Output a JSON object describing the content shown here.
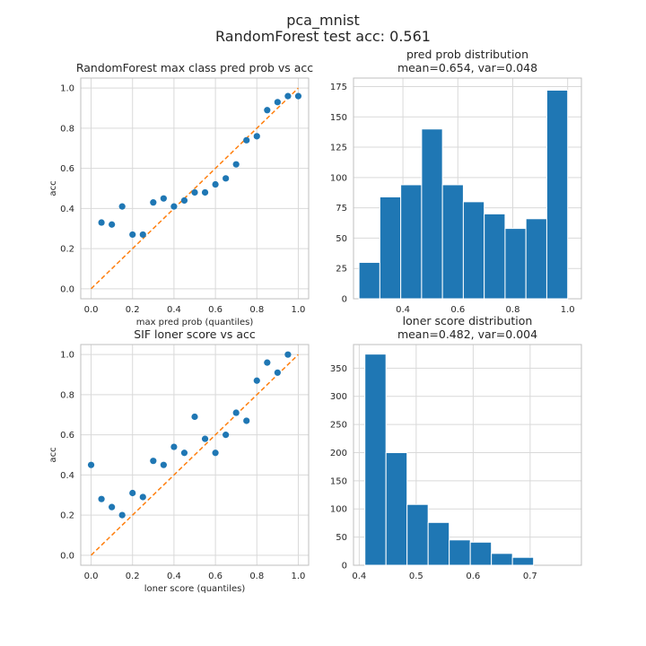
{
  "figure": {
    "title_line1": "pca_mnist",
    "title_line2": "RandomForest test acc: 0.561"
  },
  "chart_data": [
    {
      "type": "scatter",
      "title": "RandomForest max class pred prob vs acc",
      "xlabel": "max pred prob (quantiles)",
      "ylabel": "acc",
      "xlim": [
        -0.05,
        1.05
      ],
      "ylim": [
        -0.05,
        1.05
      ],
      "xticks": [
        0.0,
        0.2,
        0.4,
        0.6,
        0.8,
        1.0
      ],
      "yticks": [
        0.0,
        0.2,
        0.4,
        0.6,
        0.8,
        1.0
      ],
      "grid": true,
      "diagonal_reference": true,
      "colors": {
        "points": "#1f77b4",
        "diagonal": "#ff7f0e"
      },
      "x": [
        0.05,
        0.1,
        0.15,
        0.2,
        0.25,
        0.3,
        0.35,
        0.4,
        0.45,
        0.5,
        0.55,
        0.6,
        0.65,
        0.7,
        0.75,
        0.8,
        0.85,
        0.9,
        0.95,
        1.0
      ],
      "y": [
        0.33,
        0.32,
        0.41,
        0.27,
        0.27,
        0.43,
        0.45,
        0.41,
        0.44,
        0.48,
        0.48,
        0.52,
        0.55,
        0.62,
        0.74,
        0.76,
        0.89,
        0.93,
        0.96,
        0.96
      ]
    },
    {
      "type": "bar",
      "subtype": "histogram",
      "title_line1": "pred prob distribution",
      "title_line2": "mean=0.654, var=0.048",
      "xlim": [
        0.22,
        1.05
      ],
      "ylim": [
        0,
        182
      ],
      "xticks": [
        0.4,
        0.6,
        0.8,
        1.0
      ],
      "yticks": [
        0,
        25,
        50,
        75,
        100,
        125,
        150,
        175
      ],
      "grid": true,
      "colors": {
        "bars": "#1f77b4"
      },
      "bin_edges": [
        0.24,
        0.316,
        0.392,
        0.468,
        0.544,
        0.62,
        0.696,
        0.772,
        0.848,
        0.924,
        1.0
      ],
      "values": [
        30,
        84,
        94,
        140,
        94,
        80,
        70,
        58,
        66,
        172
      ]
    },
    {
      "type": "scatter",
      "title": "SIF loner score vs acc",
      "xlabel": "loner score (quantiles)",
      "ylabel": "acc",
      "xlim": [
        -0.05,
        1.05
      ],
      "ylim": [
        -0.05,
        1.05
      ],
      "xticks": [
        0.0,
        0.2,
        0.4,
        0.6,
        0.8,
        1.0
      ],
      "yticks": [
        0.0,
        0.2,
        0.4,
        0.6,
        0.8,
        1.0
      ],
      "grid": true,
      "diagonal_reference": true,
      "colors": {
        "points": "#1f77b4",
        "diagonal": "#ff7f0e"
      },
      "x": [
        0.0,
        0.05,
        0.1,
        0.15,
        0.2,
        0.25,
        0.3,
        0.35,
        0.4,
        0.45,
        0.5,
        0.55,
        0.6,
        0.65,
        0.7,
        0.75,
        0.8,
        0.85,
        0.9,
        0.95
      ],
      "y": [
        0.45,
        0.28,
        0.24,
        0.2,
        0.31,
        0.29,
        0.47,
        0.45,
        0.54,
        0.51,
        0.69,
        0.58,
        0.51,
        0.6,
        0.71,
        0.67,
        0.87,
        0.96,
        0.91,
        1.0
      ]
    },
    {
      "type": "bar",
      "subtype": "histogram",
      "title_line1": "loner score distribution",
      "title_line2": "mean=0.482, var=0.004",
      "xlim": [
        0.39,
        0.79
      ],
      "ylim": [
        0,
        392
      ],
      "xticks": [
        0.4,
        0.5,
        0.6,
        0.7
      ],
      "yticks": [
        0,
        50,
        100,
        150,
        200,
        250,
        300,
        350
      ],
      "grid": true,
      "colors": {
        "bars": "#1f77b4"
      },
      "bin_edges": [
        0.41,
        0.447,
        0.484,
        0.521,
        0.558,
        0.595,
        0.632,
        0.669,
        0.706,
        0.743,
        0.78
      ],
      "values": [
        375,
        200,
        108,
        76,
        45,
        41,
        21,
        14,
        0,
        0
      ]
    }
  ]
}
